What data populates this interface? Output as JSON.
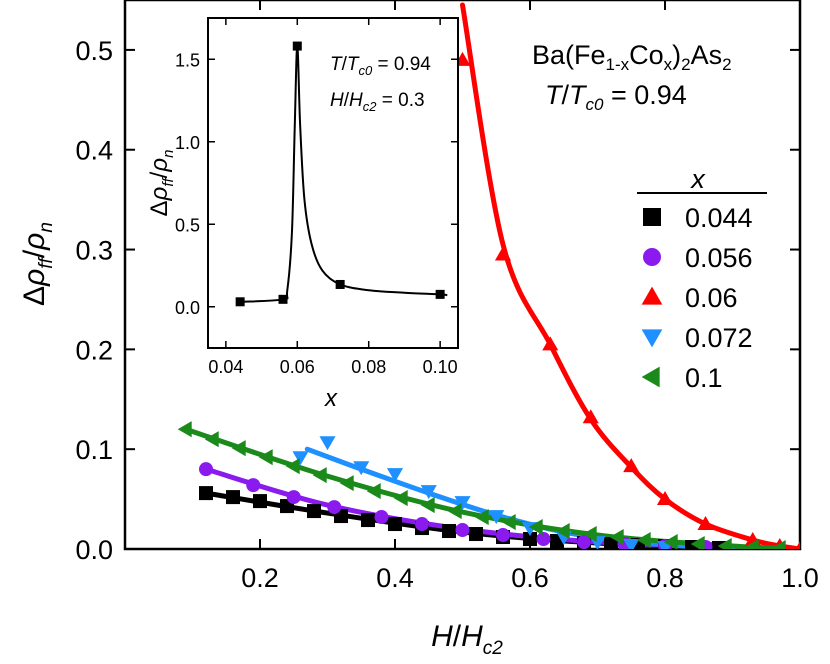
{
  "chart_data": [
    {
      "type": "scatter",
      "title": "Ba(Fe1-xCox)2As2",
      "title_parts": {
        "base": "Ba(Fe",
        "sub1": "1-x",
        "mid": "Co",
        "sub2": "x",
        "end": ")",
        "sub3": "2",
        "tail": "As",
        "sub4": "2"
      },
      "subtitle": "T/Tc0 = 0.94",
      "subtitle_parts": {
        "t": "T",
        "slash": "/",
        "tc": "T",
        "sub": "c0",
        "eq": " = 0.94"
      },
      "xlabel": "H/Hc2",
      "xlabel_parts": {
        "h": "H",
        "slash": "/",
        "hc": "H",
        "sub": "c2"
      },
      "ylabel": "Δρff/ρn",
      "ylabel_parts": {
        "delta": "Δ",
        "rho": "ρ",
        "sub": "ff",
        "slash": "/",
        "rho2": "ρ",
        "sub2": "n"
      },
      "xlim": [
        0.0,
        1.0
      ],
      "ylim": [
        0.0,
        0.55
      ],
      "xticks": [
        0.2,
        0.4,
        0.6,
        0.8,
        1.0
      ],
      "xtick_labels": [
        "0.2",
        "0.4",
        "0.6",
        "0.8",
        "1.0"
      ],
      "yticks": [
        0.0,
        0.1,
        0.2,
        0.3,
        0.4,
        0.5
      ],
      "ytick_labels": [
        "0.0",
        "0.1",
        "0.2",
        "0.3",
        "0.4",
        "0.5"
      ],
      "legend_title": "x",
      "legend_position": "right",
      "series": [
        {
          "name": "0.044",
          "color": "#000000",
          "marker": "square",
          "x": [
            0.12,
            0.16,
            0.2,
            0.24,
            0.28,
            0.32,
            0.36,
            0.4,
            0.44,
            0.48,
            0.52,
            0.56,
            0.6,
            0.64,
            0.68,
            0.72,
            0.76,
            0.8,
            0.84,
            0.88
          ],
          "y": [
            0.056,
            0.052,
            0.048,
            0.043,
            0.038,
            0.033,
            0.029,
            0.025,
            0.021,
            0.018,
            0.015,
            0.012,
            0.01,
            0.008,
            0.006,
            0.005,
            0.004,
            0.003,
            0.002,
            0.001
          ]
        },
        {
          "name": "0.056",
          "color": "#8a1aee",
          "marker": "circle",
          "x": [
            0.12,
            0.19,
            0.25,
            0.31,
            0.38,
            0.44,
            0.5,
            0.56,
            0.62,
            0.68,
            0.74,
            0.8,
            0.86
          ],
          "y": [
            0.08,
            0.064,
            0.052,
            0.042,
            0.032,
            0.025,
            0.019,
            0.014,
            0.01,
            0.007,
            0.005,
            0.003,
            0.002
          ]
        },
        {
          "name": "0.06",
          "color": "#ff0000",
          "marker": "triangle-up",
          "x": [
            0.5,
            0.56,
            0.63,
            0.69,
            0.75,
            0.8,
            0.86,
            0.93,
            0.97,
            1.0
          ],
          "y": [
            0.49,
            0.295,
            0.205,
            0.132,
            0.083,
            0.05,
            0.025,
            0.009,
            0.003,
            0.0
          ]
        },
        {
          "name": "0.072",
          "color": "#1e90ff",
          "marker": "triangle-down",
          "x": [
            0.26,
            0.3,
            0.35,
            0.4,
            0.45,
            0.5,
            0.55,
            0.6,
            0.65,
            0.7,
            0.75,
            0.8
          ],
          "y": [
            0.092,
            0.107,
            0.082,
            0.075,
            0.058,
            0.047,
            0.033,
            0.021,
            0.012,
            0.007,
            0.004,
            0.002
          ]
        },
        {
          "name": "0.1",
          "color": "#1a8a1a",
          "marker": "triangle-left",
          "x": [
            0.09,
            0.13,
            0.17,
            0.21,
            0.25,
            0.29,
            0.33,
            0.37,
            0.41,
            0.45,
            0.49,
            0.53,
            0.57,
            0.61,
            0.65,
            0.69,
            0.73,
            0.77,
            0.81,
            0.85,
            0.89,
            0.93,
            0.97
          ],
          "y": [
            0.12,
            0.11,
            0.101,
            0.092,
            0.083,
            0.074,
            0.066,
            0.058,
            0.051,
            0.044,
            0.038,
            0.032,
            0.027,
            0.022,
            0.018,
            0.015,
            0.012,
            0.009,
            0.007,
            0.005,
            0.003,
            0.002,
            0.001
          ]
        }
      ],
      "fits": [
        {
          "name": "0.044",
          "x": [
            0.12,
            0.3,
            0.5,
            0.7,
            0.9,
            0.98
          ],
          "y": [
            0.056,
            0.036,
            0.017,
            0.006,
            0.0015,
            0.0005
          ]
        },
        {
          "name": "0.056",
          "x": [
            0.12,
            0.3,
            0.5,
            0.7,
            0.9,
            0.98
          ],
          "y": [
            0.08,
            0.044,
            0.02,
            0.007,
            0.002,
            0.0005
          ]
        },
        {
          "name": "0.06",
          "x": [
            0.5,
            0.56,
            0.63,
            0.69,
            0.75,
            0.8,
            0.86,
            0.93,
            0.97,
            1.0
          ],
          "y": [
            0.545,
            0.305,
            0.205,
            0.13,
            0.082,
            0.05,
            0.025,
            0.009,
            0.003,
            0.0
          ]
        },
        {
          "name": "0.072",
          "x": [
            0.27,
            0.35,
            0.45,
            0.55,
            0.65,
            0.75,
            0.85,
            0.9
          ],
          "y": [
            0.1,
            0.08,
            0.056,
            0.034,
            0.017,
            0.007,
            0.002,
            0.001
          ]
        },
        {
          "name": "0.1",
          "x": [
            0.09,
            0.3,
            0.5,
            0.7,
            0.9,
            0.97
          ],
          "y": [
            0.12,
            0.073,
            0.037,
            0.014,
            0.003,
            0.001
          ]
        }
      ]
    },
    {
      "type": "line",
      "title": "inset",
      "annotation1": "T/Tc0 = 0.94",
      "annotation1_parts": {
        "t": "T",
        "slash": "/",
        "tc": "T",
        "sub": "c0",
        "eq": " = 0.94"
      },
      "annotation2": "H/Hc2 = 0.3",
      "annotation2_parts": {
        "h": "H",
        "slash": "/",
        "hc": "H",
        "sub": "c2",
        "eq": " = 0.3"
      },
      "xlabel": "x",
      "ylabel": "Δρff/ρn",
      "ylabel_parts": {
        "delta": "Δ",
        "rho": "ρ",
        "sub": "ff",
        "slash": "/",
        "rho2": "ρ",
        "sub2": "n"
      },
      "xlim": [
        0.035,
        0.105
      ],
      "ylim": [
        -0.25,
        1.75
      ],
      "xticks": [
        0.04,
        0.06,
        0.08,
        0.1
      ],
      "xtick_labels": [
        "0.04",
        "0.06",
        "0.08",
        "0.10"
      ],
      "yticks": [
        0.0,
        0.5,
        1.0,
        1.5
      ],
      "ytick_labels": [
        "0.0",
        "0.5",
        "1.0",
        "1.5"
      ],
      "points": {
        "x": [
          0.044,
          0.056,
          0.06,
          0.072,
          0.1
        ],
        "y": [
          0.03,
          0.045,
          1.58,
          0.135,
          0.075
        ]
      },
      "curve": {
        "x": [
          0.044,
          0.056,
          0.0572,
          0.0585,
          0.0593,
          0.06,
          0.0608,
          0.062,
          0.064,
          0.067,
          0.072,
          0.08,
          0.09,
          0.1,
          0.102
        ],
        "y": [
          0.03,
          0.045,
          0.1,
          0.45,
          1.1,
          1.58,
          1.1,
          0.65,
          0.38,
          0.22,
          0.135,
          0.1,
          0.085,
          0.075,
          0.07
        ]
      }
    }
  ]
}
